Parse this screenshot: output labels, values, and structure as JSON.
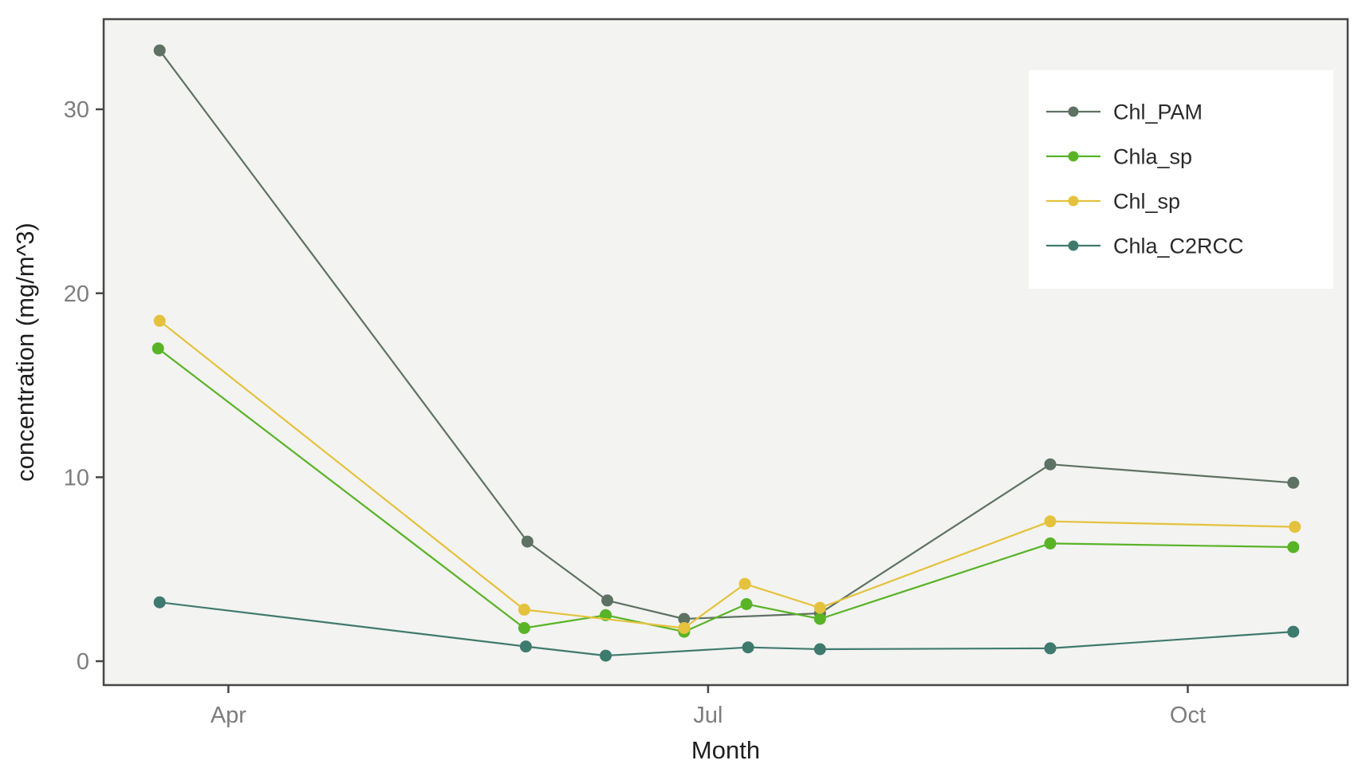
{
  "chart_data": {
    "type": "line",
    "title": "",
    "xlabel": "Month",
    "ylabel": "concentration (mg/m^3)",
    "x_unit": "month of year (decimal, Apr=4)",
    "x_tick_values": [
      4,
      7,
      10
    ],
    "x_tick_labels": [
      "Apr",
      "Jul",
      "Oct"
    ],
    "y_tick_values": [
      0,
      10,
      20,
      30
    ],
    "y_tick_labels": [
      "0",
      "10",
      "20",
      "30"
    ],
    "xlim": [
      3.22,
      11.0
    ],
    "ylim": [
      -1.3,
      34.9
    ],
    "grid": false,
    "legend_position": "top-right-inside",
    "panel_background": "#f3f3f1",
    "panel_border_color": "#474747",
    "tick_label_color": "#7d7d7d",
    "axis_title_color": "#1f1f1f",
    "legend_text_color": "#2a2a2a",
    "legend_background": "#ffffff",
    "series": [
      {
        "name": "Chl_PAM",
        "color": "#5e7263",
        "x": [
          3.57,
          5.87,
          6.37,
          6.85,
          7.7,
          9.14,
          10.66
        ],
        "y": [
          33.2,
          6.5,
          3.3,
          2.3,
          2.6,
          10.7,
          9.7
        ]
      },
      {
        "name": "Chla_sp",
        "color": "#59b327",
        "x": [
          3.56,
          5.85,
          6.36,
          6.85,
          7.24,
          7.7,
          9.14,
          10.66
        ],
        "y": [
          17.0,
          1.8,
          2.5,
          1.6,
          3.1,
          2.3,
          6.4,
          6.2
        ]
      },
      {
        "name": "Chl_sp",
        "color": "#e5c23d",
        "x": [
          3.57,
          5.85,
          6.85,
          7.23,
          7.7,
          9.14,
          10.67
        ],
        "y": [
          18.5,
          2.8,
          1.8,
          4.2,
          2.9,
          7.6,
          7.3
        ]
      },
      {
        "name": "Chla_C2RCC",
        "color": "#3f7a6e",
        "x": [
          3.57,
          5.86,
          6.36,
          7.25,
          7.7,
          9.14,
          10.66
        ],
        "y": [
          3.2,
          0.8,
          0.3,
          0.75,
          0.65,
          0.7,
          1.6
        ]
      }
    ],
    "legend_labels": [
      "Chl_PAM",
      "Chla_sp",
      "Chl_sp",
      "Chla_C2RCC"
    ]
  }
}
